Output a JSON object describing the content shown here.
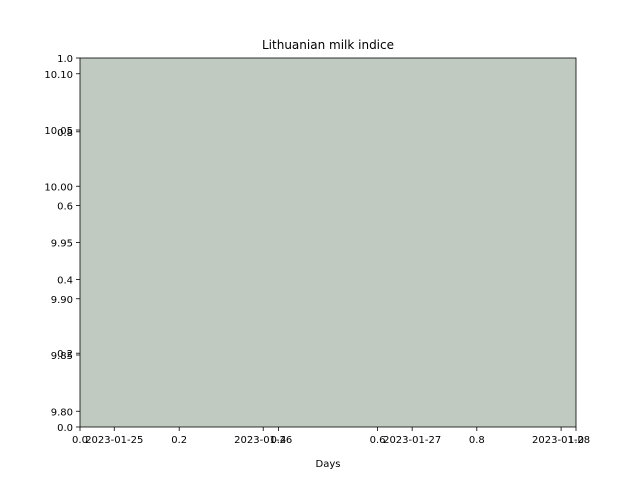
{
  "chart_data": {
    "type": "area",
    "title": "Lithuanian milk indice",
    "xlabel": "Days",
    "ylabel": "",
    "x_dates": [
      "2023-01-25",
      "2023-01-26",
      "2023-01-27",
      "2023-01-28"
    ],
    "x_date_range": [
      "2023-01-24T18:28:48",
      "2023-01-28T02:24:00"
    ],
    "y_ticks": [
      "9.80",
      "9.85",
      "9.90",
      "9.95",
      "10.00",
      "10.05",
      "10.10"
    ],
    "ylim": [
      9.786,
      10.114
    ],
    "twin_x_ticks": [
      "0.0",
      "0.2",
      "0.4",
      "0.6",
      "0.8",
      "1.0"
    ],
    "twin_y_ticks": [
      "0.0",
      "0.2",
      "0.4",
      "0.6",
      "0.8",
      "1.0"
    ],
    "twin_xlim": [
      0,
      1
    ],
    "twin_ylim": [
      0,
      1
    ],
    "fill_color": "#c0cac0",
    "grid": false,
    "legend": "none"
  }
}
